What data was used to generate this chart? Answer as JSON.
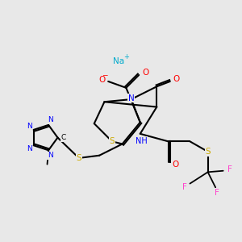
{
  "bg_color": "#e8e8e8",
  "atom_colors": {
    "N": "#0000ff",
    "O": "#ff0000",
    "S": "#ccaa00",
    "F": "#ff44cc",
    "Na": "#00aacc",
    "C": "#000000",
    "H": "#555555"
  },
  "bond_color": "#000000"
}
